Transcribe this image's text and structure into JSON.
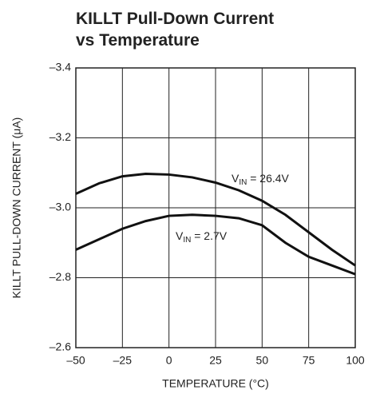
{
  "chart_data": {
    "type": "line",
    "title_lines": [
      "KILLT Pull-Down Current",
      "vs Temperature"
    ],
    "xlabel": "TEMPERATURE (°C)",
    "ylabel": "KILLT PULL-DOWN CURRENT (μA)",
    "x": [
      -50,
      -37.5,
      -25,
      -12.5,
      0,
      12.5,
      25,
      37.5,
      50,
      62.5,
      75,
      87.5,
      100
    ],
    "series": [
      {
        "color": "#111111",
        "values": [
          -3.04,
          -3.07,
          -3.09,
          -3.097,
          -3.095,
          -3.087,
          -3.072,
          -3.05,
          -3.02,
          -2.98,
          -2.93,
          -2.88,
          -2.835
        ]
      },
      {
        "color": "#111111",
        "values": [
          -2.88,
          -2.91,
          -2.94,
          -2.962,
          -2.977,
          -2.98,
          -2.977,
          -2.97,
          -2.95,
          -2.9,
          -2.86,
          -2.835,
          -2.81
        ]
      }
    ],
    "annotations": [
      {
        "main": "V",
        "sub": "IN",
        "rest": " = 26.4V"
      },
      {
        "main": "V",
        "sub": "IN",
        "rest": " = 2.7V"
      }
    ],
    "xlim": [
      -50,
      100
    ],
    "xticks": [
      {
        "value": -50,
        "label": "–50"
      },
      {
        "value": -25,
        "label": "–25"
      },
      0,
      25,
      50,
      75,
      100
    ],
    "ylim": [
      -2.6,
      -3.4
    ],
    "yticks": [
      {
        "value": -2.6,
        "label": "–2.6"
      },
      {
        "value": -2.8,
        "label": "–2.8"
      },
      {
        "value": -3.0,
        "label": "–3.0"
      },
      {
        "value": -3.2,
        "label": "–3.2"
      },
      {
        "value": -3.4,
        "label": "–3.4"
      }
    ],
    "grid": true
  }
}
